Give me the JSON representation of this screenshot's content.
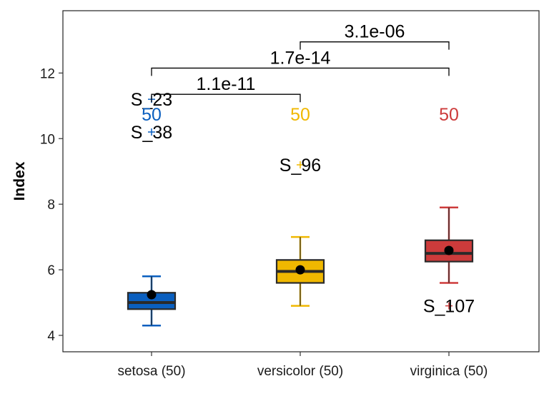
{
  "chart_data": {
    "type": "box",
    "title": "",
    "xlabel": "",
    "ylabel": "Index",
    "ylim": [
      3.5,
      13.9
    ],
    "yticks": [
      4,
      6,
      8,
      10,
      12
    ],
    "grid": false,
    "categories": [
      "setosa (50)",
      "versicolor (50)",
      "virginica (50)"
    ],
    "boxes": [
      {
        "category": "setosa (50)",
        "min": 4.3,
        "q1": 4.8,
        "median": 5.0,
        "q3": 5.3,
        "max": 5.8,
        "mean": 5.24,
        "n_label": "50",
        "color": "#0a5fbf"
      },
      {
        "category": "versicolor (50)",
        "min": 4.9,
        "q1": 5.6,
        "median": 5.95,
        "q3": 6.3,
        "max": 7.0,
        "mean": 6.0,
        "n_label": "50",
        "color": "#f0b800"
      },
      {
        "category": "virginica (50)",
        "min": 5.6,
        "q1": 6.25,
        "median": 6.5,
        "q3": 6.9,
        "max": 7.9,
        "mean": 6.59,
        "n_label": "50",
        "color": "#cd3b3b"
      }
    ],
    "outliers": [
      {
        "category": "setosa (50)",
        "y": 11.2,
        "label": "S_23"
      },
      {
        "category": "setosa (50)",
        "y": 10.2,
        "label": "S_38"
      },
      {
        "category": "versicolor (50)",
        "y": 9.2,
        "label": "S_96"
      },
      {
        "category": "virginica (50)",
        "y": 4.9,
        "label": "S_107"
      }
    ],
    "comparisons": [
      {
        "from": "setosa (50)",
        "to": "versicolor (50)",
        "y": 11.35,
        "label": "1.1e-11"
      },
      {
        "from": "setosa (50)",
        "to": "virginica (50)",
        "y": 12.15,
        "label": "1.7e-14"
      },
      {
        "from": "versicolor (50)",
        "to": "virginica (50)",
        "y": 12.95,
        "label": "3.1e-06"
      }
    ],
    "n_label_y": 10.75
  }
}
